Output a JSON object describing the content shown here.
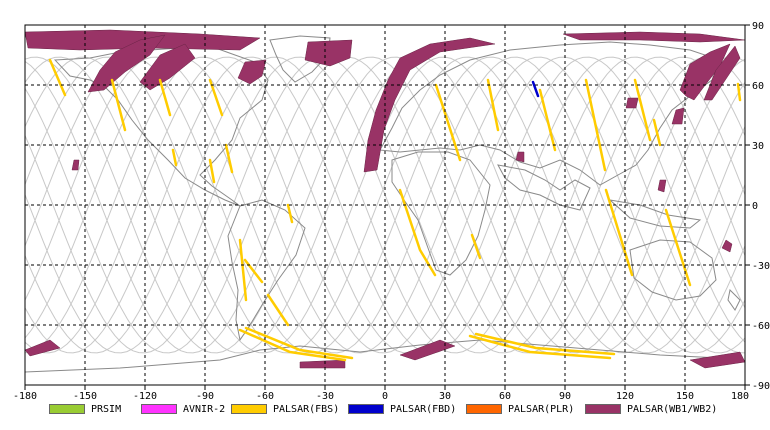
{
  "map": {
    "lon_ticks": [
      "-180",
      "-150",
      "-120",
      "-90",
      "-60",
      "-30",
      "0",
      "30",
      "60",
      "90",
      "120",
      "150",
      "180"
    ],
    "lat_ticks": [
      "90",
      "60",
      "30",
      "0",
      "-30",
      "-60",
      "-90"
    ],
    "colors": {
      "land": "#8a8a8a",
      "orbit": "#c8c8c8",
      "grid": "#000000",
      "prism": "#99cc33",
      "avnir2": "#ff33ff",
      "fbs": "#ffcc00",
      "fbd": "#0000cc",
      "plr": "#ff6600",
      "wb": "#993366"
    }
  },
  "legend": [
    {
      "label": "PRSIM",
      "color": "#99cc33"
    },
    {
      "label": "AVNIR-2",
      "color": "#ff33ff"
    },
    {
      "label": "PALSAR(FBS)",
      "color": "#ffcc00"
    },
    {
      "label": "PALSAR(FBD)",
      "color": "#0000cc"
    },
    {
      "label": "PALSAR(PLR)",
      "color": "#ff6600"
    },
    {
      "label": "PALSAR(WB1/WB2)",
      "color": "#993366"
    }
  ]
}
